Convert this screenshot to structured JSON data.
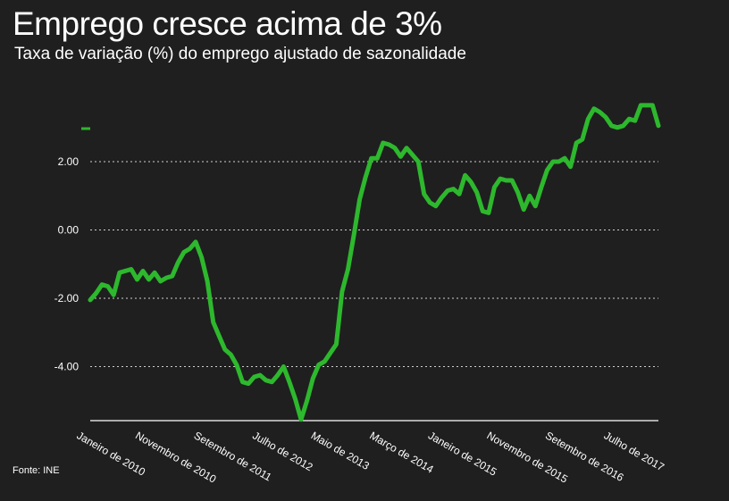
{
  "header": {
    "title": "Emprego cresce acima de 3%",
    "subtitle": "Taxa de variação (%) do emprego ajustado de sazonalidade"
  },
  "footer": {
    "source": "Fonte: INE"
  },
  "colors": {
    "background": "#1f1f1f",
    "line": "#2db82d",
    "text": "#ffffff",
    "grid": "#cfcfcf"
  },
  "chart_data": {
    "type": "line",
    "title": "Emprego cresce acima de 3%",
    "subtitle": "Taxa de variação (%) do emprego ajustado de sazonalidade",
    "xlabel": "",
    "ylabel": "",
    "ylim": [
      -5.6,
      3.4
    ],
    "yticks": [
      2,
      0,
      -2,
      -4
    ],
    "ytick_labels": [
      "2.00",
      "0.00",
      "-2.00",
      "-4.00"
    ],
    "grid": "horizontal dotted",
    "xtick_labels": [
      "Janeiro de 2010",
      "Novembro de 2010",
      "Setembro de 2011",
      "Julho de 2012",
      "Maio de 2013",
      "Março de 2014",
      "Janeiro de 2015",
      "Novembro de 2015",
      "Setembro de 2016",
      "Julho de 2017"
    ],
    "xtick_index": [
      0,
      10,
      20,
      30,
      40,
      50,
      60,
      70,
      80,
      90
    ],
    "series": [
      {
        "values": [
          -2.05,
          -1.85,
          -1.6,
          -1.65,
          -1.9,
          -1.25,
          -1.2,
          -1.15,
          -1.45,
          -1.2,
          -1.45,
          -1.25,
          -1.5,
          -1.4,
          -1.35,
          -0.95,
          -0.65,
          -0.55,
          -0.35,
          -0.8,
          -1.5,
          -2.7,
          -3.1,
          -3.5,
          -3.65,
          -3.95,
          -4.45,
          -4.5,
          -4.3,
          -4.25,
          -4.4,
          -4.45,
          -4.25,
          -4.0,
          -4.45,
          -4.95,
          -5.55,
          -5.0,
          -4.35,
          -3.95,
          -3.85,
          -3.6,
          -3.35,
          -1.8,
          -1.15,
          -0.15,
          0.9,
          1.55,
          2.1,
          2.1,
          2.55,
          2.5,
          2.4,
          2.15,
          2.4,
          2.2,
          2.0,
          1.05,
          0.8,
          0.7,
          0.95,
          1.15,
          1.2,
          1.05,
          1.6,
          1.4,
          1.1,
          0.55,
          0.5,
          1.25,
          1.5,
          1.45,
          1.45,
          1.1,
          0.6,
          1.0,
          0.7,
          1.25,
          1.75,
          2.0,
          2.0,
          2.1,
          1.85,
          2.55,
          2.65,
          3.25,
          3.55,
          3.45,
          3.3,
          3.05,
          3.0,
          3.05,
          3.25,
          3.2,
          3.65,
          3.65,
          3.65,
          3.05
        ]
      }
    ]
  }
}
